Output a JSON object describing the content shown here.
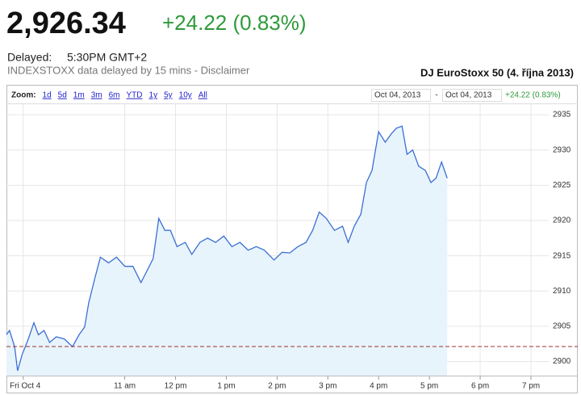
{
  "header": {
    "price": "2,926.34",
    "change": "+24.22 (0.83%)",
    "delayed_label": "Delayed:",
    "delayed_time": "5:30PM GMT+2",
    "disclaimer": "INDEXSTOXX data delayed by 15 mins - Disclaimer"
  },
  "toolbar": {
    "zoom_label": "Zoom:",
    "zoom_options": [
      "1d",
      "5d",
      "1m",
      "3m",
      "6m",
      "YTD",
      "1y",
      "5y",
      "10y",
      "All"
    ],
    "range_start": "Oct 04, 2013",
    "range_separator": "-",
    "range_end": "Oct 04, 2013",
    "range_change": "+24.22 (0.83%)"
  },
  "chart_data": {
    "type": "line",
    "title": "DJ EuroStoxx 50 (4. října 2013)",
    "x": [
      8.67,
      8.73,
      8.83,
      8.89,
      8.98,
      9.1,
      9.21,
      9.3,
      9.41,
      9.52,
      9.65,
      9.81,
      9.97,
      10.1,
      10.21,
      10.29,
      10.41,
      10.52,
      10.68,
      10.84,
      11.0,
      11.16,
      11.32,
      11.44,
      11.56,
      11.67,
      11.79,
      11.9,
      12.03,
      12.19,
      12.32,
      12.48,
      12.63,
      12.79,
      12.95,
      13.11,
      13.27,
      13.43,
      13.59,
      13.75,
      13.94,
      14.1,
      14.25,
      14.41,
      14.57,
      14.7,
      14.83,
      14.97,
      15.13,
      15.29,
      15.4,
      15.52,
      15.65,
      15.76,
      15.87,
      16.0,
      16.13,
      16.25,
      16.35,
      16.46,
      16.56,
      16.67,
      16.79,
      16.92,
      17.03,
      17.13,
      17.24,
      17.35
    ],
    "values": [
      2903.8,
      2904.4,
      2902.1,
      2898.7,
      2901.0,
      2903.2,
      2905.5,
      2903.8,
      2904.4,
      2902.7,
      2903.5,
      2903.2,
      2902.1,
      2903.8,
      2904.9,
      2908.3,
      2911.8,
      2914.8,
      2914.0,
      2914.8,
      2913.5,
      2913.5,
      2911.2,
      2912.9,
      2914.6,
      2920.3,
      2918.6,
      2918.6,
      2916.3,
      2916.9,
      2915.2,
      2916.9,
      2917.5,
      2916.9,
      2917.8,
      2916.3,
      2916.9,
      2915.8,
      2916.3,
      2915.8,
      2914.4,
      2915.5,
      2915.4,
      2916.3,
      2916.9,
      2918.6,
      2921.2,
      2920.3,
      2918.6,
      2919.2,
      2916.9,
      2919.2,
      2920.9,
      2925.4,
      2927.1,
      2932.6,
      2931.1,
      2932.3,
      2933.1,
      2933.4,
      2929.4,
      2930.0,
      2927.7,
      2927.1,
      2925.4,
      2926.0,
      2928.3,
      2926.0
    ],
    "color": "#3b6fd4",
    "fill_color": "#e8f4fc",
    "reference_value": 2902.12,
    "reference_color": "#a03030",
    "xlim": [
      8.67,
      19.35
    ],
    "xticks": [
      {
        "value": 9,
        "label": "Fri Oct 4"
      },
      {
        "value": 11,
        "label": "11 am"
      },
      {
        "value": 12,
        "label": "12 pm"
      },
      {
        "value": 13,
        "label": "1 pm"
      },
      {
        "value": 14,
        "label": "2 pm"
      },
      {
        "value": 15,
        "label": "3 pm"
      },
      {
        "value": 16,
        "label": "4 pm"
      },
      {
        "value": 17,
        "label": "5 pm"
      },
      {
        "value": 18,
        "label": "6 pm"
      },
      {
        "value": 19,
        "label": "7 pm"
      }
    ],
    "ylim": [
      2898,
      2936.5
    ],
    "yticks": [
      2900,
      2905,
      2910,
      2915,
      2920,
      2925,
      2930,
      2935
    ],
    "grid": true
  }
}
